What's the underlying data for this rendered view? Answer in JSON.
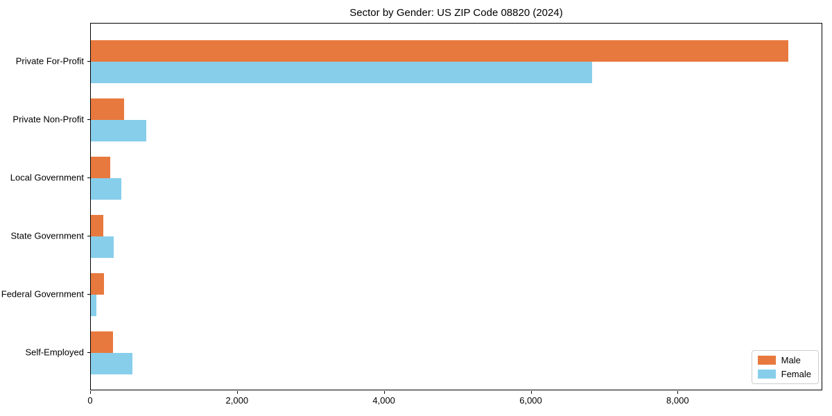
{
  "chart_data": {
    "type": "bar",
    "orientation": "horizontal",
    "title": "Sector by Gender: US ZIP Code 08820 (2024)",
    "categories": [
      "Private For-Profit",
      "Private Non-Profit",
      "Local Government",
      "State Government",
      "Federal Government",
      "Self-Employed"
    ],
    "series": [
      {
        "name": "Male",
        "color": "#e8793e",
        "values": [
          9500,
          450,
          260,
          170,
          180,
          300
        ]
      },
      {
        "name": "Female",
        "color": "#87ceeb",
        "values": [
          6830,
          760,
          415,
          310,
          75,
          565
        ]
      }
    ],
    "xlabel": "",
    "ylabel": "",
    "xlim": [
      0,
      9970
    ],
    "xtick_values": [
      0,
      2000,
      4000,
      6000,
      8000
    ],
    "xtick_labels": [
      "0",
      "2,000",
      "4,000",
      "6,000",
      "8,000"
    ],
    "grid": false,
    "legend": {
      "position": "lower right",
      "labels": [
        "Male",
        "Female"
      ]
    }
  }
}
